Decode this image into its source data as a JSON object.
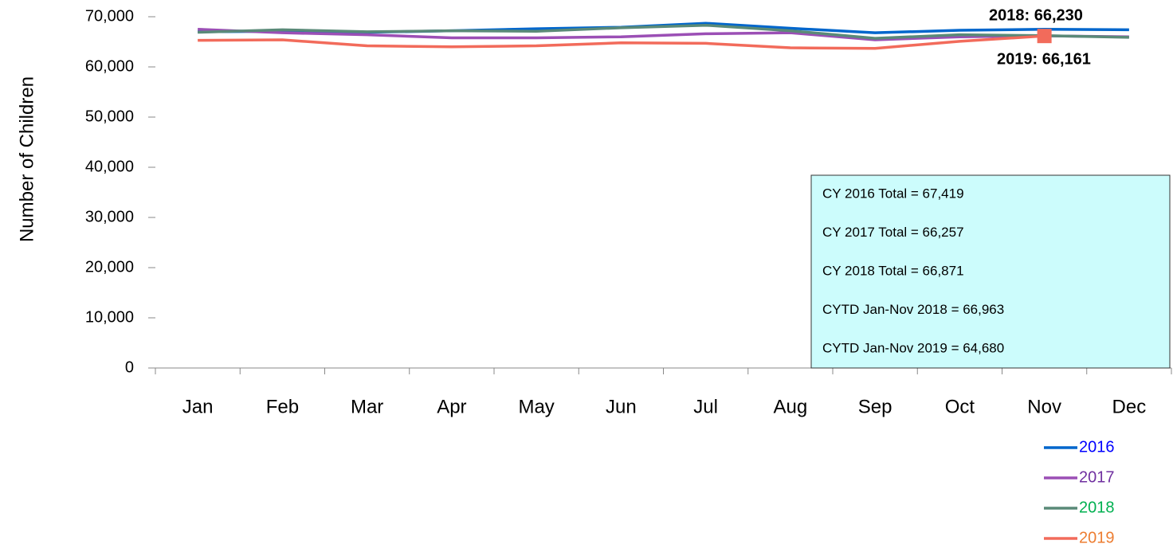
{
  "chart_data": {
    "type": "line",
    "y_label": "Number of Children",
    "categories": [
      "Jan",
      "Feb",
      "Mar",
      "Apr",
      "May",
      "Jun",
      "Jul",
      "Aug",
      "Sep",
      "Oct",
      "Nov",
      "Dec"
    ],
    "series": [
      {
        "name": "2016",
        "color": "#0066cc",
        "label_color": "#0000ff",
        "values": [
          67000,
          67100,
          66900,
          67200,
          67600,
          67900,
          68700,
          67700,
          66800,
          67300,
          67500,
          67400
        ]
      },
      {
        "name": "2017",
        "color": "#9b4fb5",
        "label_color": "#7030a0",
        "values": [
          67500,
          66800,
          66400,
          65800,
          65800,
          66000,
          66600,
          66800,
          65400,
          66000,
          66200,
          66000
        ]
      },
      {
        "name": "2018",
        "color": "#5a8a78",
        "label_color": "#00b050",
        "values": [
          66900,
          67400,
          67000,
          67200,
          67100,
          67800,
          68300,
          67200,
          65700,
          66400,
          66230,
          65900
        ]
      },
      {
        "name": "2019",
        "color": "#f26b5b",
        "label_color": "#ed7d31",
        "values": [
          65300,
          65400,
          64200,
          64000,
          64200,
          64800,
          64700,
          63800,
          63700,
          65100,
          66161,
          null
        ]
      }
    ],
    "point_labels": [
      {
        "series": 2,
        "index": 10,
        "label": "2018: 66,230"
      },
      {
        "series": 3,
        "index": 10,
        "label": "2019: 66,161"
      }
    ],
    "marker": {
      "series": 3,
      "index": 10,
      "color": "#f26b5b"
    },
    "summary_box": {
      "color": "#ccfcfc",
      "lines": [
        "CY 2016 Total = 67,419",
        "CY 2017 Total = 66,257",
        "CY 2018 Total = 66,871",
        "CYTD Jan-Nov 2018 = 66,963",
        "CYTD Jan-Nov 2019 = 64,680"
      ]
    },
    "ylim": [
      0,
      70000
    ],
    "yticks": [
      0,
      {
        "value": 10000,
        "label": "10,000"
      },
      {
        "value": 20000,
        "label": "20,000"
      },
      {
        "value": 30000,
        "label": "30,000"
      },
      {
        "value": 40000,
        "label": "40,000"
      },
      {
        "value": 50000,
        "label": "50,000"
      },
      {
        "value": 60000,
        "label": "60,000"
      },
      {
        "value": 70000,
        "label": "70,000"
      }
    ],
    "grid": false,
    "legend": "bottom-right"
  }
}
